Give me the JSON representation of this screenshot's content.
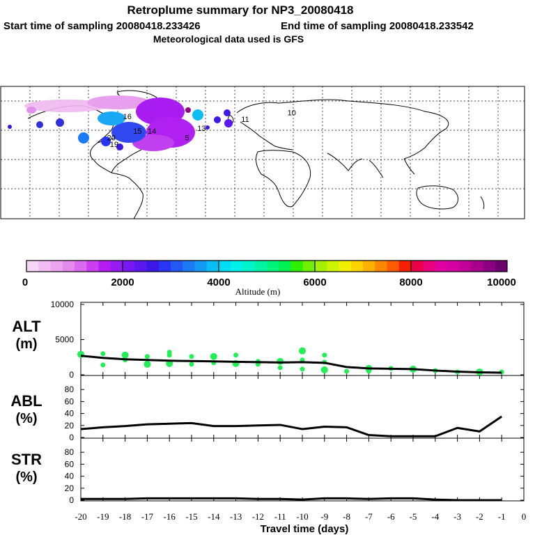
{
  "header": {
    "title": "Retroplume summary for NP3_20080418",
    "start_label": "Start time of sampling 20080418.233426",
    "end_label": "End time of sampling 20080418.233542",
    "met_label": "Meteorological data used is GFS"
  },
  "map": {
    "labels": [
      {
        "text": "16",
        "lon": -93,
        "lat": 60
      },
      {
        "text": "10",
        "lon": 20,
        "lat": 63
      },
      {
        "text": "20",
        "lon": -104,
        "lat": 44
      },
      {
        "text": "19",
        "lon": -102,
        "lat": 39
      },
      {
        "text": "15",
        "lon": -86,
        "lat": 49
      },
      {
        "text": "14",
        "lon": -76,
        "lat": 49
      },
      {
        "text": "13",
        "lon": -42,
        "lat": 51
      },
      {
        "text": "11",
        "lon": -12,
        "lat": 58
      },
      {
        "text": "5",
        "lon": -52,
        "lat": 44
      }
    ]
  },
  "colorbar": {
    "tick_labels": [
      "0",
      "2000",
      "4000",
      "6000",
      "8000",
      "10000"
    ],
    "axis_label": "Altitude (m)",
    "min": 0,
    "max": 10000,
    "colors": [
      "#f6d6f6",
      "#f2bcf2",
      "#eca4ee",
      "#e48aec",
      "#dc6aee",
      "#cc3ef0",
      "#b41cf2",
      "#961af4",
      "#7a18f4",
      "#5a18f0",
      "#3c18e8",
      "#2a34f4",
      "#2458f4",
      "#1c7af4",
      "#149cf4",
      "#08bef4",
      "#00dcf4",
      "#00f0ec",
      "#00f4cc",
      "#00f4a4",
      "#00f47c",
      "#00f054",
      "#2cf000",
      "#70f000",
      "#a4f000",
      "#ccf400",
      "#f0f000",
      "#fcd400",
      "#fcb000",
      "#fc8800",
      "#fc5c00",
      "#f42000",
      "#ec0048",
      "#e8007c",
      "#e000a0",
      "#d400a4",
      "#c00098",
      "#a8008c",
      "#8c0084",
      "#6c006c"
    ]
  },
  "chart_data": [
    {
      "id": "alt",
      "type": "line+scatter",
      "label_main": "ALT",
      "label_unit": "(m)",
      "ylim": [
        0,
        10000
      ],
      "y_ticks": [
        "0",
        "5000",
        "10000"
      ],
      "x": [
        -20,
        -19,
        -18,
        -17,
        -16,
        -15,
        -14,
        -13,
        -12,
        -11,
        -10,
        -9,
        -8,
        -7,
        -6,
        -5,
        -4,
        -3,
        -2,
        -1
      ],
      "line": [
        2700,
        2400,
        2200,
        2100,
        2000,
        1950,
        1900,
        1850,
        1800,
        1750,
        1800,
        1700,
        1100,
        900,
        850,
        800,
        600,
        450,
        350,
        300
      ],
      "points": [
        {
          "x": -20,
          "y": 2900
        },
        {
          "x": -19,
          "y": 3000
        },
        {
          "x": -19,
          "y": 1400
        },
        {
          "x": -18,
          "y": 2800
        },
        {
          "x": -18,
          "y": 2100
        },
        {
          "x": -17,
          "y": 2600
        },
        {
          "x": -17,
          "y": 1500
        },
        {
          "x": -16,
          "y": 2800
        },
        {
          "x": -16,
          "y": 3200
        },
        {
          "x": -16,
          "y": 1600
        },
        {
          "x": -15,
          "y": 2600
        },
        {
          "x": -15,
          "y": 1500
        },
        {
          "x": -14,
          "y": 2600
        },
        {
          "x": -14,
          "y": 1700
        },
        {
          "x": -13,
          "y": 2800
        },
        {
          "x": -13,
          "y": 1600
        },
        {
          "x": -12,
          "y": 1900
        },
        {
          "x": -12,
          "y": 1500
        },
        {
          "x": -11,
          "y": 1900
        },
        {
          "x": -11,
          "y": 1000
        },
        {
          "x": -10,
          "y": 2100
        },
        {
          "x": -10,
          "y": 3400
        },
        {
          "x": -10,
          "y": 800
        },
        {
          "x": -9,
          "y": 2800
        },
        {
          "x": -9,
          "y": 700
        },
        {
          "x": -9,
          "y": 1800
        },
        {
          "x": -8,
          "y": 500
        },
        {
          "x": -7,
          "y": 900
        },
        {
          "x": -7,
          "y": 500
        },
        {
          "x": -6,
          "y": 900
        },
        {
          "x": -5,
          "y": 800
        },
        {
          "x": -4,
          "y": 600
        },
        {
          "x": -3,
          "y": 400
        },
        {
          "x": -2,
          "y": 400
        },
        {
          "x": -1,
          "y": 400
        }
      ]
    },
    {
      "id": "abl",
      "type": "line",
      "label_main": "ABL",
      "label_unit": "(%)",
      "ylim": [
        0,
        100
      ],
      "y_ticks": [
        "0",
        "20",
        "40",
        "60",
        "80"
      ],
      "x": [
        -20,
        -19,
        -18,
        -17,
        -16,
        -15,
        -14,
        -13,
        -12,
        -11,
        -10,
        -9,
        -8,
        -7,
        -6,
        -5,
        -4,
        -3,
        -2,
        -1
      ],
      "line": [
        14,
        17,
        19,
        22,
        23,
        24,
        19,
        19,
        20,
        21,
        14,
        18,
        17,
        4,
        2,
        2,
        2,
        16,
        10,
        35
      ]
    },
    {
      "id": "str",
      "type": "line",
      "label_main": "STR",
      "label_unit": "(%)",
      "ylim": [
        0,
        100
      ],
      "y_ticks": [
        "0",
        "20",
        "40",
        "60",
        "80"
      ],
      "x": [
        -20,
        -19,
        -18,
        -17,
        -16,
        -15,
        -14,
        -13,
        -12,
        -11,
        -10,
        -9,
        -8,
        -7,
        -6,
        -5,
        -4,
        -3,
        -2,
        -1
      ],
      "line": [
        2,
        2,
        2,
        3,
        3,
        3,
        3,
        3,
        2,
        2,
        1,
        3,
        3,
        2,
        3,
        3,
        1,
        0,
        0,
        0
      ]
    }
  ],
  "x_axis": {
    "tick_labels": [
      "-20",
      "-19",
      "-18",
      "-17",
      "-16",
      "-15",
      "-14",
      "-13",
      "-12",
      "-11",
      "-10",
      "-9",
      "-8",
      "-7",
      "-6",
      "-5",
      "-4",
      "-3",
      "-2",
      "-1",
      "0"
    ],
    "tick_values": [
      -20,
      -19,
      -18,
      -17,
      -16,
      -15,
      -14,
      -13,
      -12,
      -11,
      -10,
      -9,
      -8,
      -7,
      -6,
      -5,
      -4,
      -3,
      -2,
      -1,
      0
    ],
    "title": "Travel time (days)",
    "range": [
      -20,
      0
    ]
  },
  "colors": {
    "line": "#000000",
    "points": "#22ee55"
  }
}
